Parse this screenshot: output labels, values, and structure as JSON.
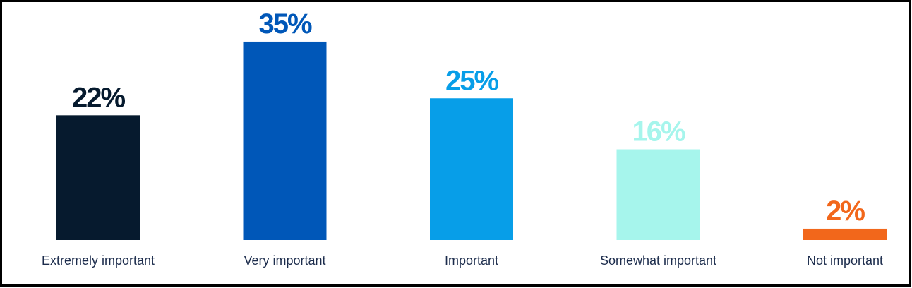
{
  "chart_data": {
    "type": "bar",
    "categories": [
      "Extremely important",
      "Very important",
      "Important",
      "Somewhat important",
      "Not important"
    ],
    "values": [
      22,
      35,
      25,
      16,
      2
    ],
    "value_labels": [
      "22%",
      "35%",
      "25%",
      "16%",
      "2%"
    ],
    "colors": [
      "#061a2e",
      "#0057b8",
      "#079ee8",
      "#a6f5ec",
      "#f2671b"
    ]
  }
}
